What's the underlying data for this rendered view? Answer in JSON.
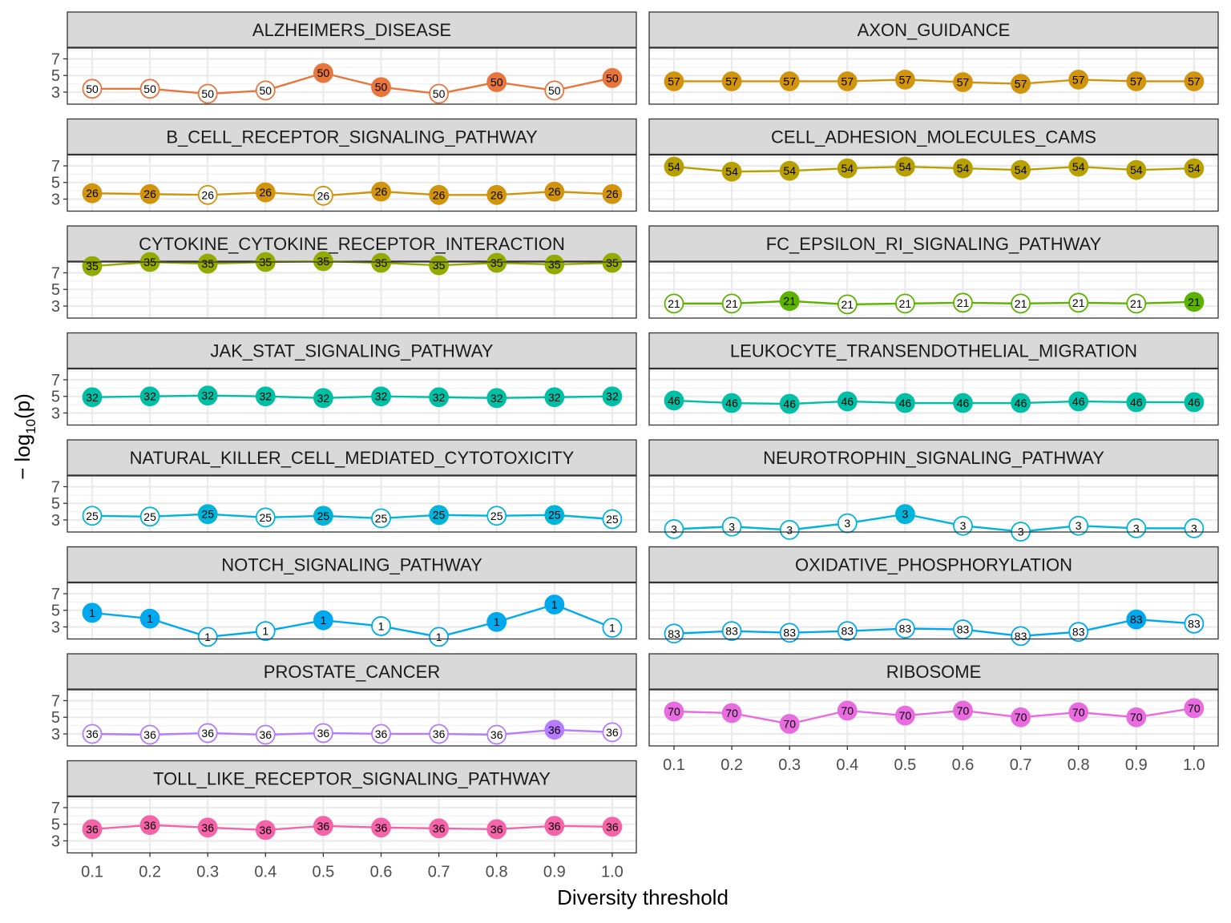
{
  "chart_data": {
    "type": "line",
    "facet_layout": "2 columns, free x per row, shared y",
    "xlabel": "Diversity threshold",
    "ylabel_main": "− log",
    "ylabel_sub": "10",
    "ylabel_tail": "(p)",
    "x": [
      0.1,
      0.2,
      0.3,
      0.4,
      0.5,
      0.6,
      0.7,
      0.8,
      0.9,
      1.0
    ],
    "x_tick_labels": [
      "0.1",
      "0.2",
      "0.3",
      "0.4",
      "0.5",
      "0.6",
      "0.7",
      "0.8",
      "0.9",
      "1.0"
    ],
    "y_ticks": [
      3,
      5,
      7
    ],
    "y_tick_labels": [
      "3",
      "5",
      "7"
    ],
    "ylim": [
      1.55,
      8.3
    ],
    "grid": true,
    "legend": "none",
    "point_label_note": "filled marker = solid point, hollow marker = open point",
    "panels": [
      {
        "name": "ALZHEIMERS_DISEASE",
        "color": "#E8763C",
        "label": "50",
        "values": [
          3.4,
          3.4,
          2.8,
          3.2,
          5.3,
          3.6,
          2.8,
          4.2,
          3.2,
          4.7
        ],
        "filled": [
          false,
          false,
          false,
          false,
          true,
          true,
          false,
          true,
          false,
          true
        ]
      },
      {
        "name": "AXON_GUIDANCE",
        "color": "#D1940C",
        "label": "57",
        "values": [
          4.3,
          4.3,
          4.3,
          4.3,
          4.5,
          4.2,
          4.0,
          4.5,
          4.3,
          4.3
        ],
        "filled": [
          true,
          true,
          true,
          true,
          true,
          true,
          true,
          true,
          true,
          true
        ]
      },
      {
        "name": "B_CELL_RECEPTOR_SIGNALING_PATHWAY",
        "color": "#D1940C",
        "label": "26",
        "values": [
          3.7,
          3.6,
          3.5,
          3.8,
          3.4,
          3.9,
          3.5,
          3.5,
          3.9,
          3.6
        ],
        "filled": [
          true,
          true,
          false,
          true,
          false,
          true,
          true,
          true,
          true,
          true
        ]
      },
      {
        "name": "CELL_ADHESION_MOLECULES_CAMS",
        "color": "#B8A000",
        "label": "54",
        "values": [
          6.9,
          6.3,
          6.4,
          6.7,
          6.9,
          6.7,
          6.5,
          6.9,
          6.5,
          6.7
        ],
        "filled": [
          true,
          true,
          true,
          true,
          true,
          true,
          true,
          true,
          true,
          true
        ]
      },
      {
        "name": "CYTOKINE_CYTOKINE_RECEPTOR_INTERACTION",
        "color": "#93AA00",
        "label": "35",
        "values": [
          7.8,
          8.3,
          8.1,
          8.3,
          8.4,
          8.2,
          7.9,
          8.2,
          8.0,
          8.2
        ],
        "filled": [
          true,
          true,
          true,
          true,
          true,
          true,
          true,
          true,
          true,
          true
        ]
      },
      {
        "name": "FC_EPSILON_RI_SIGNALING_PATHWAY",
        "color": "#5BB300",
        "label": "21",
        "values": [
          3.3,
          3.3,
          3.6,
          3.2,
          3.3,
          3.4,
          3.3,
          3.4,
          3.3,
          3.5
        ],
        "filled": [
          false,
          false,
          true,
          false,
          false,
          false,
          false,
          false,
          false,
          true
        ]
      },
      {
        "name": "JAK_STAT_SIGNALING_PATHWAY",
        "color": "#00BFA5",
        "label": "32",
        "values": [
          4.9,
          5.0,
          5.1,
          5.0,
          4.8,
          5.0,
          4.9,
          4.8,
          4.9,
          5.0
        ],
        "filled": [
          true,
          true,
          true,
          true,
          true,
          true,
          true,
          true,
          true,
          true
        ]
      },
      {
        "name": "LEUKOCYTE_TRANSENDOTHELIAL_MIGRATION",
        "color": "#00BFA5",
        "label": "46",
        "values": [
          4.5,
          4.2,
          4.1,
          4.4,
          4.2,
          4.2,
          4.2,
          4.4,
          4.3,
          4.3
        ],
        "filled": [
          true,
          true,
          true,
          true,
          true,
          true,
          true,
          true,
          true,
          true
        ]
      },
      {
        "name": "NATURAL_KILLER_CELL_MEDIATED_CYTOTOXICITY",
        "color": "#00B4DA",
        "label": "25",
        "values": [
          3.5,
          3.4,
          3.7,
          3.3,
          3.5,
          3.2,
          3.6,
          3.5,
          3.6,
          3.1
        ],
        "filled": [
          false,
          false,
          true,
          false,
          true,
          false,
          true,
          false,
          true,
          false
        ]
      },
      {
        "name": "NEUROTROPHIN_SIGNALING_PATHWAY",
        "color": "#00B4DA",
        "label": "3",
        "values": [
          1.9,
          2.2,
          1.8,
          2.6,
          3.7,
          2.3,
          1.6,
          2.3,
          2.0,
          2.0
        ],
        "filled": [
          false,
          false,
          false,
          false,
          true,
          false,
          false,
          false,
          false,
          false
        ]
      },
      {
        "name": "NOTCH_SIGNALING_PATHWAY",
        "color": "#00A9EE",
        "label": "1",
        "values": [
          4.7,
          4.0,
          1.8,
          2.5,
          3.8,
          3.1,
          1.8,
          3.6,
          5.7,
          2.9
        ],
        "filled": [
          true,
          true,
          false,
          false,
          true,
          false,
          false,
          true,
          true,
          false
        ]
      },
      {
        "name": "OXIDATIVE_PHOSPHORYLATION",
        "color": "#00A9EE",
        "label": "83",
        "values": [
          2.2,
          2.5,
          2.3,
          2.5,
          2.8,
          2.7,
          1.9,
          2.4,
          3.9,
          3.4
        ],
        "filled": [
          false,
          false,
          false,
          false,
          false,
          false,
          false,
          false,
          true,
          false
        ]
      },
      {
        "name": "PROSTATE_CANCER",
        "color": "#B77BFF",
        "label": "36",
        "values": [
          3.0,
          2.9,
          3.1,
          2.9,
          3.1,
          3.0,
          3.0,
          2.9,
          3.5,
          3.2
        ],
        "filled": [
          false,
          false,
          false,
          false,
          false,
          false,
          false,
          false,
          true,
          false
        ]
      },
      {
        "name": "RIBOSOME",
        "color": "#E96BE0",
        "label": "70",
        "values": [
          5.7,
          5.5,
          4.2,
          5.8,
          5.2,
          5.8,
          5.0,
          5.6,
          5.0,
          6.1
        ],
        "filled": [
          true,
          true,
          true,
          true,
          true,
          true,
          true,
          true,
          true,
          true
        ]
      },
      {
        "name": "TOLL_LIKE_RECEPTOR_SIGNALING_PATHWAY",
        "color": "#F564A8",
        "label": "36",
        "values": [
          4.4,
          4.9,
          4.6,
          4.3,
          4.8,
          4.6,
          4.5,
          4.4,
          4.8,
          4.7
        ],
        "filled": [
          true,
          true,
          true,
          true,
          true,
          true,
          true,
          true,
          true,
          true
        ]
      }
    ]
  }
}
